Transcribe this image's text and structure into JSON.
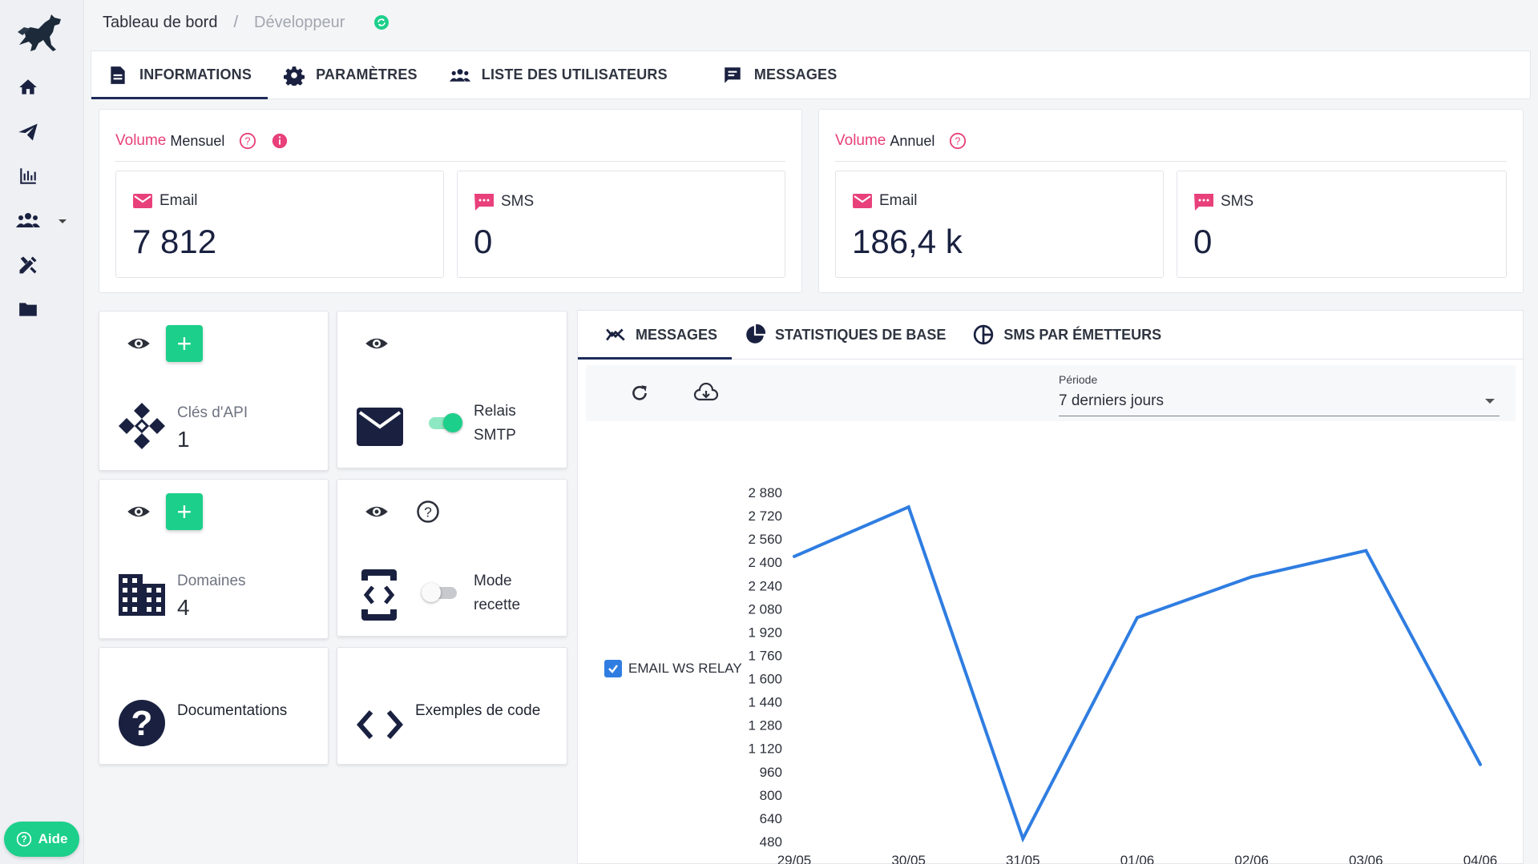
{
  "breadcrumb": {
    "current": "Tableau de bord",
    "separator": "/",
    "sub": "Développeur"
  },
  "top_tabs": [
    {
      "label": "INFORMATIONS",
      "icon": "document-icon",
      "active": true
    },
    {
      "label": "PARAMÈTRES",
      "icon": "gear-icon",
      "active": false
    },
    {
      "label": "LISTE DES UTILISATEURS",
      "icon": "users-icon",
      "active": false
    },
    {
      "label": "MESSAGES",
      "icon": "message-icon",
      "active": false
    }
  ],
  "monthly": {
    "title_accent": "Volume",
    "title_rest": "Mensuel",
    "email_label": "Email",
    "email_value": "7 812",
    "sms_label": "SMS",
    "sms_value": "0"
  },
  "annual": {
    "title_accent": "Volume",
    "title_rest": "Annuel",
    "email_label": "Email",
    "email_value": "186,4 k",
    "sms_label": "SMS",
    "sms_value": "0"
  },
  "tiles": {
    "api_keys": {
      "label": "Clés d'API",
      "count": "1"
    },
    "smtp": {
      "label_line1": "Relais",
      "label_line2": "SMTP",
      "enabled": true
    },
    "domains": {
      "label": "Domaines",
      "count": "4"
    },
    "test_mode": {
      "label_line1": "Mode",
      "label_line2": "recette",
      "enabled": false
    },
    "docs": {
      "label": "Documentations"
    },
    "code": {
      "label": "Exemples de code"
    },
    "plus": "+"
  },
  "chart_tabs": [
    {
      "label": "MESSAGES",
      "icon": "trend-icon",
      "active": true
    },
    {
      "label": "STATISTIQUES DE BASE",
      "icon": "pie-icon",
      "active": false
    },
    {
      "label": "SMS PAR ÉMETTEURS",
      "icon": "sector-icon",
      "active": false
    }
  ],
  "period": {
    "label": "Période",
    "value": "7 derniers jours"
  },
  "help_button": "Aide",
  "colors": {
    "accent_green": "#1ccf8a",
    "accent_pink": "#e8407a",
    "navy": "#1a2140",
    "series_blue": "#2f7de1"
  },
  "chart_data": {
    "type": "line",
    "x": [
      "29/05",
      "30/05",
      "31/05",
      "01/06",
      "02/06",
      "03/06",
      "04/06"
    ],
    "series": [
      {
        "name": "EMAIL WS RELAY",
        "values": [
          2440,
          2780,
          500,
          2020,
          2300,
          2480,
          1010
        ]
      }
    ],
    "ylim": [
      480,
      2880
    ],
    "yticks": [
      "2 880",
      "2 720",
      "2 560",
      "2 400",
      "2 240",
      "2 080",
      "1 920",
      "1 760",
      "1 600",
      "1 440",
      "1 280",
      "1 120",
      "960",
      "800",
      "640",
      "480"
    ],
    "ytick_values": [
      2880,
      2720,
      2560,
      2400,
      2240,
      2080,
      1920,
      1760,
      1600,
      1440,
      1280,
      1120,
      960,
      800,
      640,
      480
    ],
    "legend": "left",
    "grid": false
  }
}
